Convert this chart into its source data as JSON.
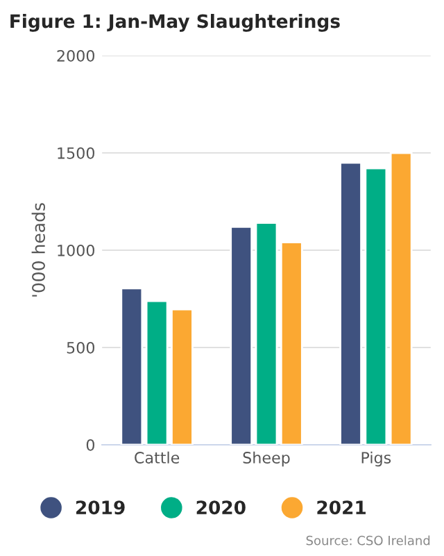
{
  "chart_data": {
    "type": "bar",
    "title": "Figure 1: Jan-May Slaughterings",
    "ylabel": "'000 heads",
    "categories": [
      "Cattle",
      "Sheep",
      "Pigs"
    ],
    "series": [
      {
        "name": "2019",
        "color": "#3f527f",
        "values": [
          804,
          1120,
          1450
        ]
      },
      {
        "name": "2020",
        "color": "#00ae86",
        "values": [
          739,
          1141,
          1421
        ]
      },
      {
        "name": "2021",
        "color": "#fba832",
        "values": [
          696,
          1041,
          1500
        ]
      }
    ],
    "ylim": [
      0,
      2000
    ],
    "yticks": [
      0,
      500,
      1000,
      1500,
      2000
    ],
    "grid": "y",
    "legend": "bottom",
    "marker": "circle",
    "annotations": [
      "Source: CSO Ireland"
    ]
  }
}
